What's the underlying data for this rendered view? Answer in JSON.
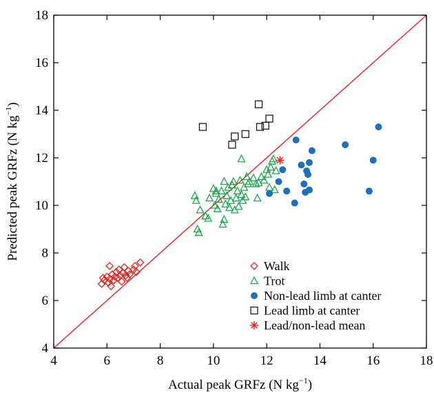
{
  "chart_data": {
    "type": "scatter",
    "xlabel": "Actual peak GRFz (N kg",
    "xlabel_sup": "−1",
    "xlabel_end": ")",
    "ylabel": "Predicted peak GRFz (N kg",
    "ylabel_sup": "−1",
    "ylabel_end": ")",
    "xlim": [
      4,
      18
    ],
    "ylim": [
      4,
      18
    ],
    "xticks": [
      4,
      6,
      8,
      10,
      12,
      14,
      16,
      18
    ],
    "yticks": [
      4,
      6,
      8,
      10,
      12,
      14,
      16,
      18
    ],
    "grid": false,
    "legend_position": "bottom-right",
    "identity_line": {
      "from": [
        4,
        4
      ],
      "to": [
        18,
        18
      ],
      "color": "#e2231a"
    },
    "series": [
      {
        "name": "Walk",
        "marker": "diamond",
        "color": "#e2231a",
        "points": [
          [
            5.8,
            6.7
          ],
          [
            5.85,
            6.95
          ],
          [
            5.9,
            6.85
          ],
          [
            6.0,
            7.0
          ],
          [
            6.05,
            6.75
          ],
          [
            6.1,
            7.45
          ],
          [
            6.1,
            6.9
          ],
          [
            6.15,
            6.6
          ],
          [
            6.2,
            7.1
          ],
          [
            6.25,
            6.85
          ],
          [
            6.3,
            7.0
          ],
          [
            6.35,
            7.2
          ],
          [
            6.4,
            6.95
          ],
          [
            6.45,
            7.3
          ],
          [
            6.5,
            7.05
          ],
          [
            6.55,
            6.8
          ],
          [
            6.6,
            7.15
          ],
          [
            6.65,
            7.4
          ],
          [
            6.7,
            7.05
          ],
          [
            6.75,
            6.95
          ],
          [
            6.8,
            7.25
          ],
          [
            6.85,
            7.1
          ],
          [
            7.0,
            7.3
          ],
          [
            7.05,
            7.45
          ],
          [
            7.1,
            7.2
          ],
          [
            7.25,
            7.6
          ]
        ]
      },
      {
        "name": "Trot",
        "marker": "triangle",
        "color": "#1ca64c",
        "points": [
          [
            9.3,
            10.4
          ],
          [
            9.35,
            10.2
          ],
          [
            9.4,
            9.0
          ],
          [
            9.45,
            8.85
          ],
          [
            9.5,
            9.8
          ],
          [
            9.7,
            9.55
          ],
          [
            9.8,
            9.45
          ],
          [
            9.85,
            10.3
          ],
          [
            10.0,
            10.7
          ],
          [
            10.05,
            10.0
          ],
          [
            10.1,
            10.5
          ],
          [
            10.15,
            9.85
          ],
          [
            10.2,
            10.25
          ],
          [
            10.3,
            10.6
          ],
          [
            10.35,
            9.2
          ],
          [
            10.4,
            9.4
          ],
          [
            10.4,
            11.0
          ],
          [
            10.45,
            10.05
          ],
          [
            10.5,
            10.4
          ],
          [
            10.55,
            10.75
          ],
          [
            10.6,
            9.9
          ],
          [
            10.65,
            10.2
          ],
          [
            10.7,
            10.85
          ],
          [
            10.75,
            11.0
          ],
          [
            10.8,
            9.8
          ],
          [
            10.85,
            10.3
          ],
          [
            10.9,
            10.6
          ],
          [
            10.95,
            9.95
          ],
          [
            11.0,
            11.05
          ],
          [
            11.05,
            10.45
          ],
          [
            11.1,
            10.2
          ],
          [
            11.15,
            10.75
          ],
          [
            11.2,
            10.35
          ],
          [
            11.25,
            11.2
          ],
          [
            11.3,
            10.9
          ],
          [
            11.35,
            11.0
          ],
          [
            11.5,
            11.15
          ],
          [
            11.6,
            10.9
          ],
          [
            11.65,
            10.3
          ],
          [
            11.7,
            10.95
          ],
          [
            11.8,
            11.2
          ],
          [
            11.9,
            11.05
          ],
          [
            12.0,
            11.5
          ],
          [
            12.05,
            11.3
          ],
          [
            12.1,
            10.75
          ],
          [
            12.15,
            11.6
          ],
          [
            12.2,
            11.85
          ],
          [
            12.25,
            11.95
          ],
          [
            12.3,
            10.65
          ],
          [
            12.35,
            11.45
          ],
          [
            11.05,
            11.95
          ],
          [
            10.1,
            10.6
          ]
        ]
      },
      {
        "name": "Non-lead limb at canter",
        "marker": "circle",
        "color": "#1f6fba",
        "points": [
          [
            12.1,
            10.5
          ],
          [
            12.45,
            11.0
          ],
          [
            12.6,
            11.5
          ],
          [
            12.75,
            10.6
          ],
          [
            13.05,
            10.1
          ],
          [
            13.1,
            12.75
          ],
          [
            13.3,
            11.7
          ],
          [
            13.4,
            10.9
          ],
          [
            13.45,
            10.55
          ],
          [
            13.5,
            11.45
          ],
          [
            13.55,
            11.3
          ],
          [
            13.6,
            10.65
          ],
          [
            13.6,
            11.8
          ],
          [
            13.7,
            12.3
          ],
          [
            14.95,
            12.55
          ],
          [
            15.85,
            10.6
          ],
          [
            16.0,
            11.9
          ],
          [
            16.2,
            13.3
          ]
        ]
      },
      {
        "name": "Lead limb at canter",
        "marker": "square",
        "color": "#1a1a1a",
        "points": [
          [
            9.6,
            13.3
          ],
          [
            10.7,
            12.55
          ],
          [
            10.8,
            12.9
          ],
          [
            11.2,
            13.0
          ],
          [
            11.7,
            14.25
          ],
          [
            11.75,
            13.3
          ],
          [
            11.95,
            13.35
          ],
          [
            12.1,
            13.65
          ]
        ]
      },
      {
        "name": "Lead/non-lead mean",
        "marker": "asterisk",
        "color": "#e2231a",
        "points": [
          [
            12.5,
            11.9
          ]
        ]
      }
    ]
  }
}
